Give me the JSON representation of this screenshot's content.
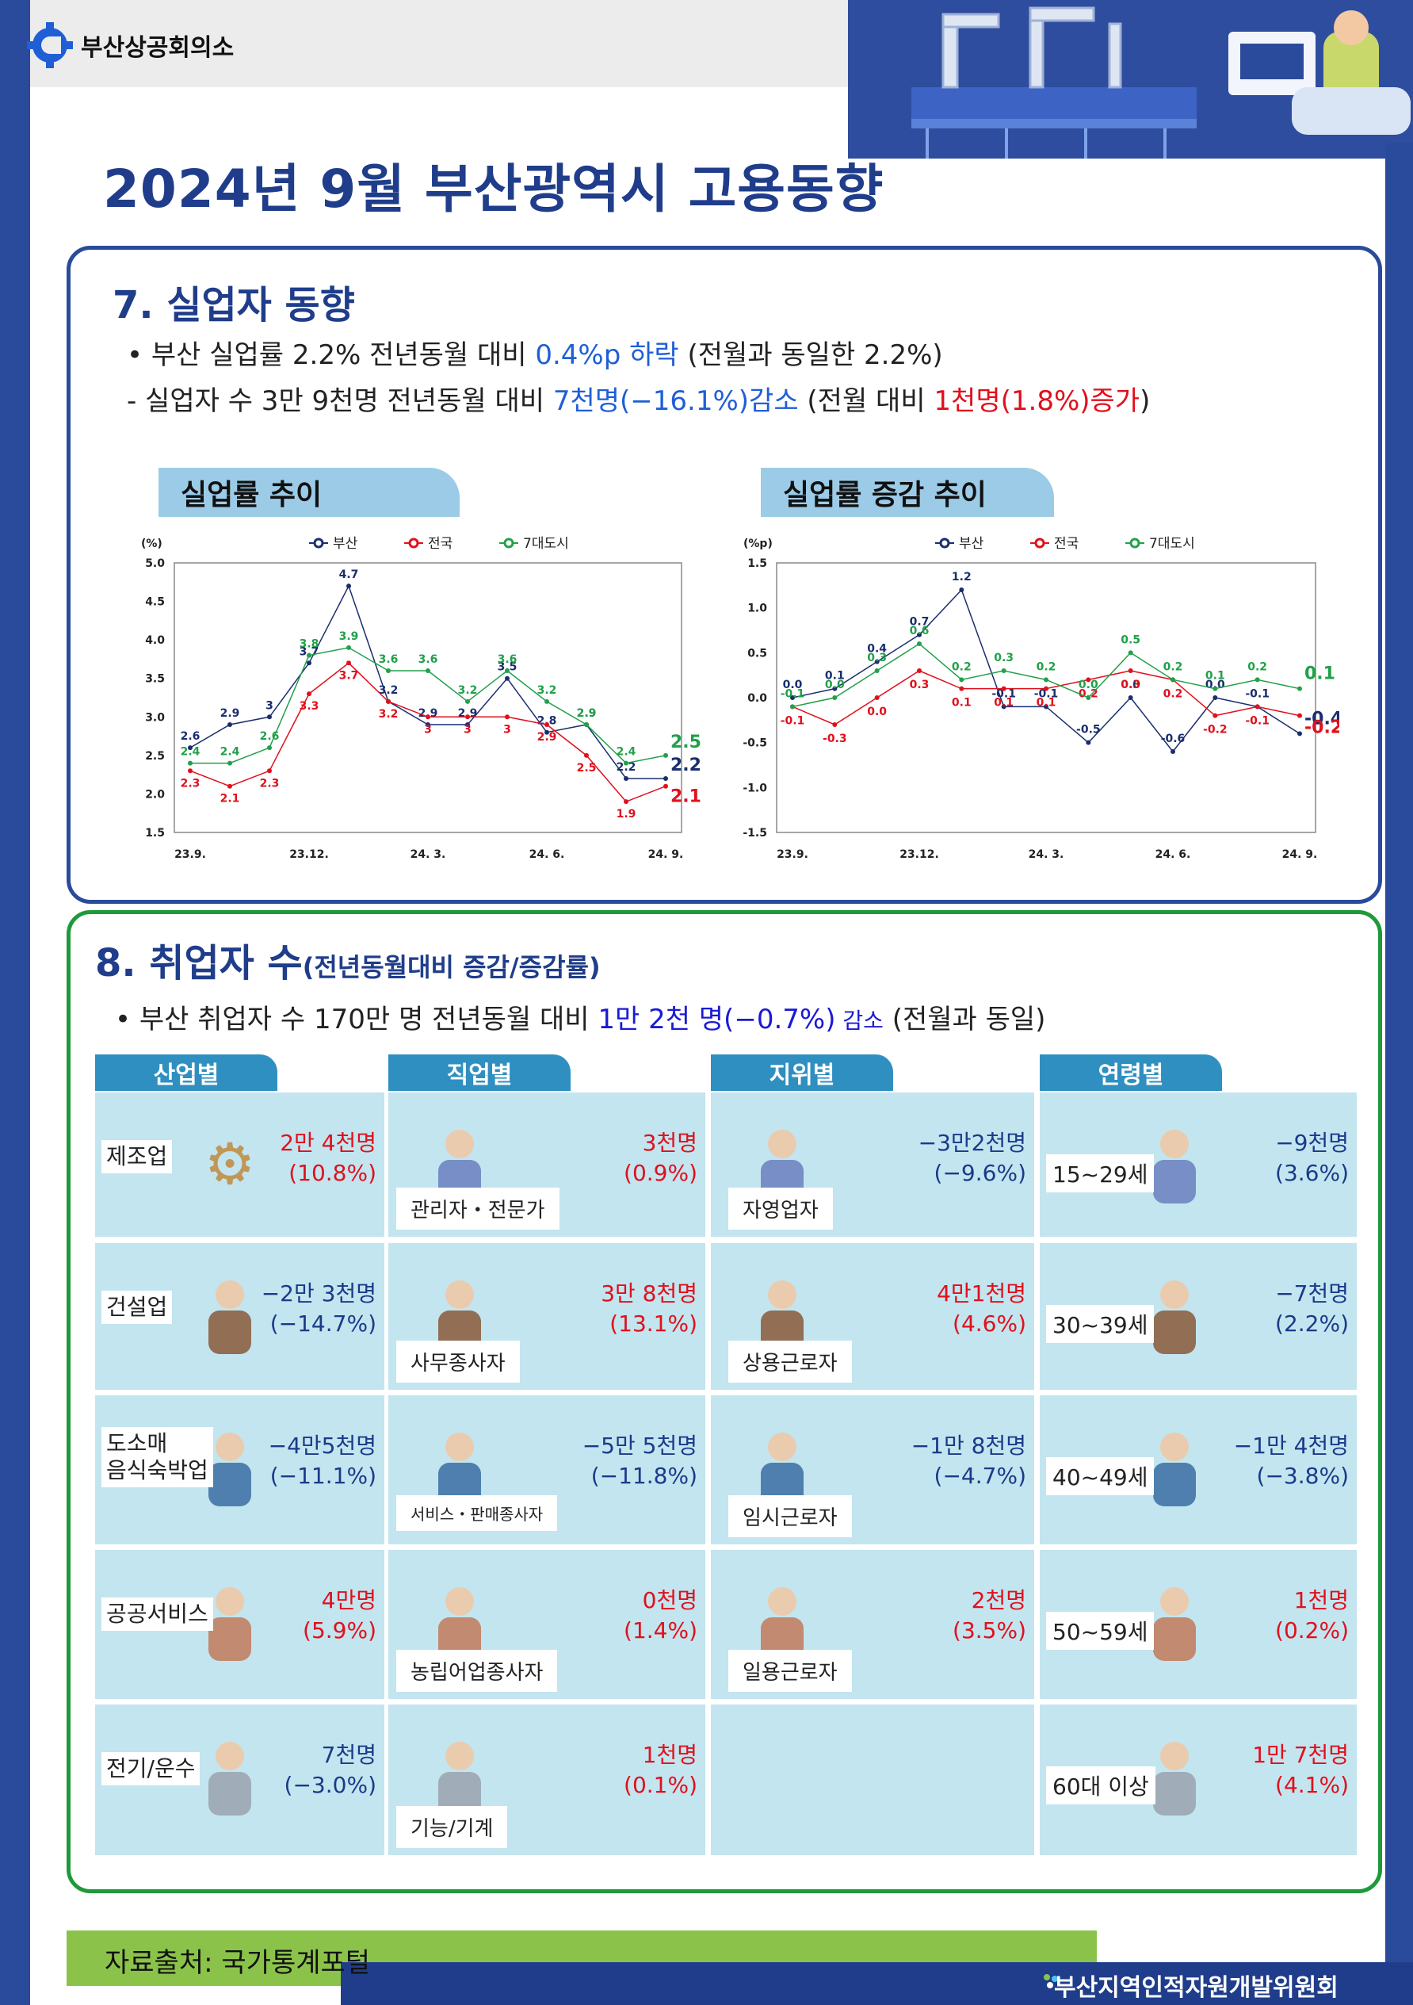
{
  "header": {
    "logo_text": "부산상공회의소",
    "title": "2024년 9월 부산광역시 고용동향"
  },
  "section7": {
    "title": "7. 실업자 동향",
    "bullet1": {
      "a": "• 부산 실업률 2.2% 전년동월 대비 ",
      "b": "0.4%p 하락",
      "c": " (전월과 동일한 2.2%)"
    },
    "bullet2": {
      "a": "- 실업자 수 3만 9천명 전년동월 대비 ",
      "b": "7천명(−16.1%)감소",
      "c": " (전월 대비 ",
      "d": "1천명(1.8%)증가",
      "e": ")"
    },
    "chart1_tab": "실업률 추이",
    "chart2_tab": "실업률 증감 추이"
  },
  "chart_data": [
    {
      "type": "line",
      "title": "실업률 추이",
      "ylabel": "(%)",
      "ylim": [
        1.5,
        5.0
      ],
      "yticks": [
        "5.0",
        "4.5",
        "4.0",
        "3.5",
        "3.0",
        "2.5",
        "2.0",
        "1.5"
      ],
      "xticks": [
        "23.9.",
        "23.12.",
        "24. 3.",
        "24. 6.",
        "24. 9."
      ],
      "x": [
        "23.9",
        "23.10",
        "23.11",
        "23.12",
        "24.1",
        "24.2",
        "24.3",
        "24.4",
        "24.5",
        "24.6",
        "24.7",
        "24.8",
        "24.9"
      ],
      "legend": [
        "부산",
        "전국",
        "7대도시"
      ],
      "series": [
        {
          "name": "부산",
          "color": "#1a2e6e",
          "values": [
            2.6,
            2.9,
            3.0,
            3.7,
            4.7,
            3.2,
            2.9,
            2.9,
            3.5,
            2.8,
            2.9,
            2.2,
            2.2
          ]
        },
        {
          "name": "전국",
          "color": "#e0101c",
          "values": [
            2.3,
            2.1,
            2.3,
            3.3,
            3.7,
            3.2,
            3.0,
            3.0,
            3.0,
            2.9,
            2.5,
            1.9,
            2.1
          ]
        },
        {
          "name": "7대도시",
          "color": "#22a04a",
          "values": [
            2.4,
            2.4,
            2.6,
            3.8,
            3.9,
            3.6,
            3.6,
            3.2,
            3.6,
            3.2,
            2.9,
            2.4,
            2.5
          ]
        }
      ]
    },
    {
      "type": "line",
      "title": "실업률 증감 추이",
      "ylabel": "(%p)",
      "ylim": [
        -1.5,
        1.5
      ],
      "yticks": [
        "1.5",
        "1.0",
        "0.5",
        "0.0",
        "-0.5",
        "-1.0",
        "-1.5"
      ],
      "xticks": [
        "23.9.",
        "23.12.",
        "24. 3.",
        "24. 6.",
        "24. 9."
      ],
      "x": [
        "23.9",
        "23.10",
        "23.11",
        "23.12",
        "24.1",
        "24.2",
        "24.3",
        "24.4",
        "24.5",
        "24.6",
        "24.7",
        "24.8",
        "24.9"
      ],
      "legend": [
        "부산",
        "전국",
        "7대도시"
      ],
      "series": [
        {
          "name": "부산",
          "color": "#1a2e6e",
          "values": [
            0.0,
            0.1,
            0.4,
            0.7,
            1.2,
            -0.1,
            -0.1,
            -0.5,
            0.0,
            -0.6,
            0.0,
            -0.1,
            -0.4
          ]
        },
        {
          "name": "전국",
          "color": "#e0101c",
          "values": [
            -0.1,
            -0.3,
            0.0,
            0.3,
            0.1,
            0.1,
            0.1,
            0.2,
            0.3,
            0.2,
            -0.2,
            -0.1,
            -0.2
          ]
        },
        {
          "name": "7대도시",
          "color": "#22a04a",
          "values": [
            -0.1,
            0.0,
            0.3,
            0.6,
            0.2,
            0.3,
            0.2,
            0.0,
            0.5,
            0.2,
            0.1,
            0.2,
            0.1
          ]
        }
      ]
    }
  ],
  "section8": {
    "title": "8. 취업자 수",
    "subtitle": "(전년동월대비 증감/증감률)",
    "bullet": {
      "a": "• 부산 취업자 수 170만 명 전년동월 대비 ",
      "b": "1만 2천 명(−0.7%)",
      "c": " 감소",
      "d": " (전월과 동일)"
    },
    "columns": [
      "산업별",
      "직업별",
      "지위별",
      "연령별"
    ],
    "industry": [
      {
        "label": "제조업",
        "v1": "2만 4천명",
        "v2": "(10.8%)",
        "color": "#e0101c"
      },
      {
        "label": "건설업",
        "v1": "−2만 3천명",
        "v2": "(−14.7%)",
        "color": "#1a3a8a"
      },
      {
        "label": "도소매\n음식숙박업",
        "v1": "−4만5천명",
        "v2": "(−11.1%)",
        "color": "#1a3a8a"
      },
      {
        "label": "공공서비스",
        "v1": "4만명",
        "v2": "(5.9%)",
        "color": "#e0101c"
      },
      {
        "label": "전기/운수",
        "v1": "7천명",
        "v2": "(−3.0%)",
        "color": "#1a3a8a"
      }
    ],
    "occupation": [
      {
        "label": "관리자・전문가",
        "v1": "3천명",
        "v2": "(0.9%)",
        "color": "#e0101c"
      },
      {
        "label": "사무종사자",
        "v1": "3만 8천명",
        "v2": "(13.1%)",
        "color": "#e0101c"
      },
      {
        "label": "서비스・판매종사자",
        "v1": "−5만 5천명",
        "v2": "(−11.8%)",
        "color": "#1a3a8a"
      },
      {
        "label": "농립어업종사자",
        "v1": "0천명",
        "v2": "(1.4%)",
        "color": "#e0101c"
      },
      {
        "label": "기능/기계",
        "v1": "1천명",
        "v2": "(0.1%)",
        "color": "#e0101c"
      }
    ],
    "status": [
      {
        "label": "자영업자",
        "v1": "−3만2천명",
        "v2": "(−9.6%)",
        "color": "#1a3a8a"
      },
      {
        "label": "상용근로자",
        "v1": "4만1천명",
        "v2": "(4.6%)",
        "color": "#e0101c"
      },
      {
        "label": "임시근로자",
        "v1": "−1만 8천명",
        "v2": "(−4.7%)",
        "color": "#1a3a8a"
      },
      {
        "label": "일용근로자",
        "v1": "2천명",
        "v2": "(3.5%)",
        "color": "#e0101c"
      }
    ],
    "age": [
      {
        "label": "15~29세",
        "v1": "−9천명",
        "v2": "(3.6%)",
        "color": "#1a3a8a"
      },
      {
        "label": "30~39세",
        "v1": "−7천명",
        "v2": "(2.2%)",
        "color": "#1a3a8a"
      },
      {
        "label": "40~49세",
        "v1": "−1만 4천명",
        "v2": "(−3.8%)",
        "color": "#1a3a8a"
      },
      {
        "label": "50~59세",
        "v1": "1천명",
        "v2": "(0.2%)",
        "color": "#e0101c"
      },
      {
        "label": "60대 이상",
        "v1": "1만 7천명",
        "v2": "(4.1%)",
        "color": "#e0101c"
      }
    ]
  },
  "footer": {
    "source": "자료출처: 국가통계포털",
    "org": "부산지역인적자원개발위원회"
  }
}
